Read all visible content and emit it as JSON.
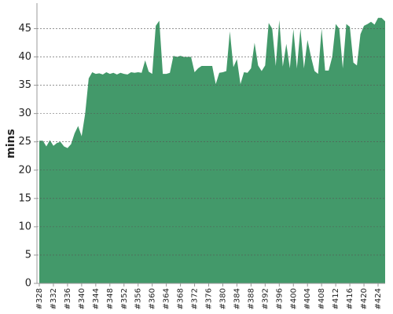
{
  "chart_data": {
    "type": "area",
    "y_label": "mins",
    "color": "#43996a",
    "grid": true,
    "ylim": [
      0,
      49.5
    ],
    "yticks": [
      0,
      5,
      10,
      15,
      20,
      25,
      30,
      35,
      40,
      45
    ],
    "categories": [
      "#328",
      null,
      null,
      null,
      "#332",
      null,
      null,
      null,
      "#336",
      null,
      null,
      null,
      "#340",
      null,
      null,
      null,
      "#344",
      null,
      null,
      null,
      "#348",
      null,
      null,
      null,
      "#352",
      null,
      null,
      null,
      "#356",
      null,
      null,
      null,
      "#360",
      null,
      null,
      null,
      "#364",
      null,
      null,
      null,
      "#368",
      null,
      null,
      null,
      "#372",
      null,
      null,
      null,
      "#376",
      null,
      null,
      null,
      "#380",
      null,
      null,
      null,
      "#384",
      null,
      null,
      null,
      "#388",
      null,
      null,
      null,
      "#392",
      null,
      null,
      null,
      "#396",
      null,
      null,
      null,
      "#400",
      null,
      null,
      null,
      "#404",
      null,
      null,
      null,
      "#408",
      null,
      null,
      null,
      "#412",
      null,
      null,
      null,
      "#416",
      null,
      null,
      null,
      "#420",
      null,
      null,
      null,
      "#424",
      null,
      null
    ],
    "values": [
      25.2,
      25.2,
      24.2,
      25.3,
      24.3,
      24.8,
      25,
      24.2,
      23.9,
      24.6,
      26.5,
      27.8,
      26,
      30,
      36.2,
      37.3,
      37,
      37.1,
      36.9,
      37.3,
      37,
      37.2,
      36.9,
      37.2,
      37,
      36.9,
      37.3,
      37.2,
      37.3,
      37.2,
      39.4,
      37.4,
      37,
      45.5,
      46.4,
      37,
      37,
      37.2,
      40.2,
      40,
      40.2,
      40,
      40,
      40,
      37.3,
      38,
      38.4,
      38.4,
      38.4,
      38.4,
      35.2,
      37.2,
      37.3,
      37.5,
      44.5,
      38.2,
      39.6,
      35.2,
      37.3,
      37.2,
      38,
      42.5,
      38.5,
      37.5,
      38.5,
      46,
      45,
      38.4,
      46.5,
      38.3,
      42.3,
      38,
      44.9,
      38,
      45,
      38,
      43,
      40,
      37.5,
      37,
      45,
      37.6,
      37.6,
      40,
      45.8,
      45,
      38,
      45.8,
      45.3,
      39,
      38.5,
      44,
      45.5,
      45.8,
      46.2,
      45.7,
      46.9,
      46.9,
      46.3
    ]
  }
}
